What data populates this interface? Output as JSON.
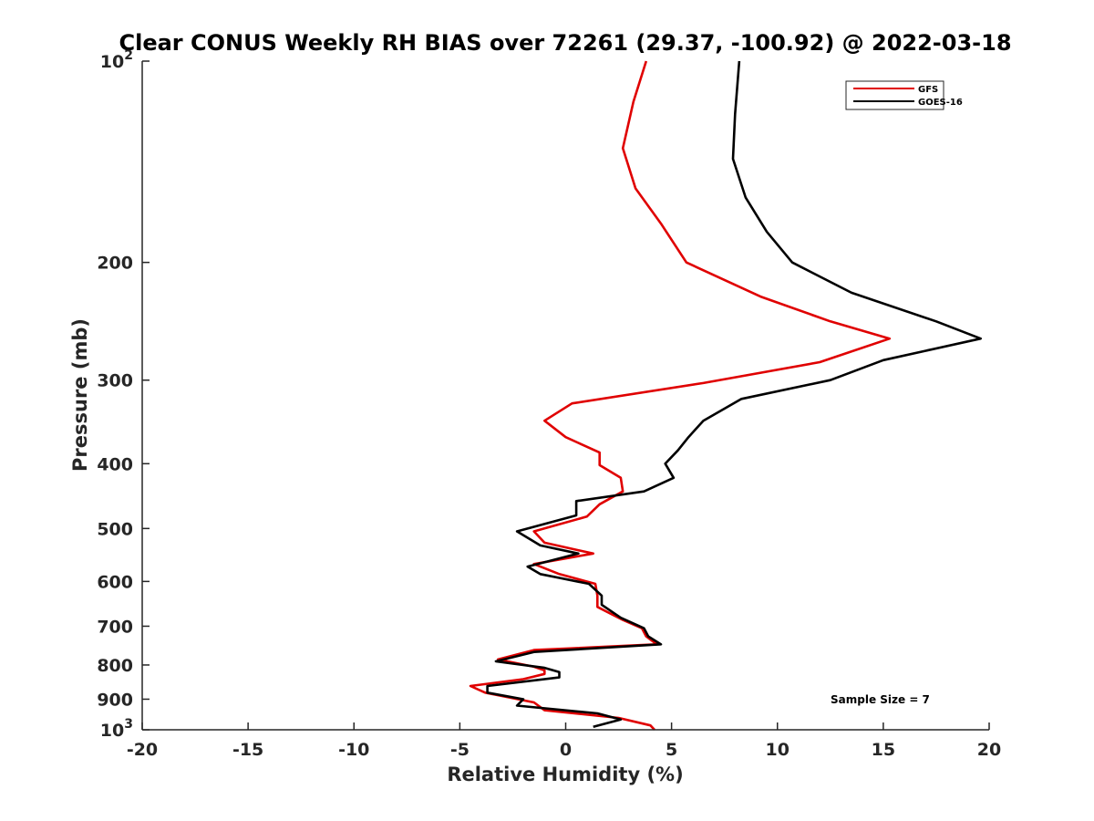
{
  "chart_data": {
    "type": "line",
    "title": "Clear CONUS Weekly RH BIAS over 72261 (29.37, -100.92) @ 2022-03-18",
    "xlabel": "Relative Humidity (%)",
    "ylabel": "Pressure (mb)",
    "xlim": [
      -20,
      20
    ],
    "ylim": [
      100,
      1000
    ],
    "y_scale": "log",
    "y_reversed": true,
    "grid": false,
    "legend_position": "top-right",
    "x_ticks": [
      "-20",
      "-15",
      "-10",
      "-5",
      "0",
      "5",
      "10",
      "15",
      "20"
    ],
    "y_ticks": [
      {
        "value": 100,
        "base": "10",
        "exp": "2"
      },
      {
        "value": 200,
        "label": "200"
      },
      {
        "value": 300,
        "label": "300"
      },
      {
        "value": 400,
        "label": "400"
      },
      {
        "value": 500,
        "label": "500"
      },
      {
        "value": 600,
        "label": "600"
      },
      {
        "value": 700,
        "label": "700"
      },
      {
        "value": 800,
        "label": "800"
      },
      {
        "value": 900,
        "label": "900"
      },
      {
        "value": 1000,
        "base": "10",
        "exp": "3"
      }
    ],
    "annotation": "Sample Size = 7",
    "series": [
      {
        "name": "GFS",
        "color": "#e00000",
        "points": [
          [
            3.8,
            100
          ],
          [
            3.2,
            115
          ],
          [
            2.7,
            135
          ],
          [
            3.3,
            155
          ],
          [
            4.5,
            175
          ],
          [
            5.7,
            200
          ],
          [
            9.2,
            225
          ],
          [
            12.5,
            245
          ],
          [
            15.3,
            260
          ],
          [
            12.0,
            282
          ],
          [
            6.5,
            303
          ],
          [
            0.3,
            325
          ],
          [
            -1.0,
            345
          ],
          [
            0.0,
            365
          ],
          [
            1.6,
            385
          ],
          [
            1.6,
            402
          ],
          [
            2.6,
            420
          ],
          [
            2.7,
            440
          ],
          [
            1.6,
            460
          ],
          [
            1.0,
            480
          ],
          [
            -1.5,
            505
          ],
          [
            -1.0,
            525
          ],
          [
            1.3,
            545
          ],
          [
            -1.5,
            565
          ],
          [
            -0.3,
            585
          ],
          [
            1.4,
            605
          ],
          [
            1.5,
            630
          ],
          [
            1.5,
            655
          ],
          [
            2.7,
            685
          ],
          [
            3.6,
            705
          ],
          [
            3.8,
            725
          ],
          [
            4.3,
            745
          ],
          [
            -1.5,
            760
          ],
          [
            -3.2,
            785
          ],
          [
            -1.5,
            805
          ],
          [
            -1.0,
            815
          ],
          [
            -1.0,
            825
          ],
          [
            -2.0,
            840
          ],
          [
            -4.5,
            860
          ],
          [
            -3.8,
            880
          ],
          [
            -1.5,
            910
          ],
          [
            -1.0,
            935
          ],
          [
            2.5,
            960
          ],
          [
            4.0,
            985
          ],
          [
            4.2,
            1000
          ]
        ]
      },
      {
        "name": "GOES-16",
        "color": "#000000",
        "points": [
          [
            8.2,
            100
          ],
          [
            8.0,
            120
          ],
          [
            7.9,
            140
          ],
          [
            8.5,
            160
          ],
          [
            9.5,
            180
          ],
          [
            10.7,
            200
          ],
          [
            13.5,
            222
          ],
          [
            17.5,
            245
          ],
          [
            19.6,
            260
          ],
          [
            15.0,
            280
          ],
          [
            12.5,
            300
          ],
          [
            8.3,
            320
          ],
          [
            6.5,
            345
          ],
          [
            5.8,
            365
          ],
          [
            5.3,
            382
          ],
          [
            4.7,
            400
          ],
          [
            5.1,
            420
          ],
          [
            3.7,
            440
          ],
          [
            0.5,
            455
          ],
          [
            0.5,
            478
          ],
          [
            -2.3,
            505
          ],
          [
            -1.2,
            530
          ],
          [
            0.6,
            545
          ],
          [
            -1.8,
            570
          ],
          [
            -1.2,
            585
          ],
          [
            1.1,
            605
          ],
          [
            1.7,
            630
          ],
          [
            1.7,
            650
          ],
          [
            2.6,
            680
          ],
          [
            3.7,
            705
          ],
          [
            3.9,
            725
          ],
          [
            4.5,
            745
          ],
          [
            -1.5,
            765
          ],
          [
            -3.3,
            790
          ],
          [
            -1.0,
            808
          ],
          [
            -0.3,
            820
          ],
          [
            -0.3,
            835
          ],
          [
            -3.7,
            860
          ],
          [
            -3.7,
            880
          ],
          [
            -2.0,
            900
          ],
          [
            -2.3,
            920
          ],
          [
            1.5,
            945
          ],
          [
            2.6,
            965
          ],
          [
            1.3,
            990
          ]
        ]
      }
    ]
  }
}
